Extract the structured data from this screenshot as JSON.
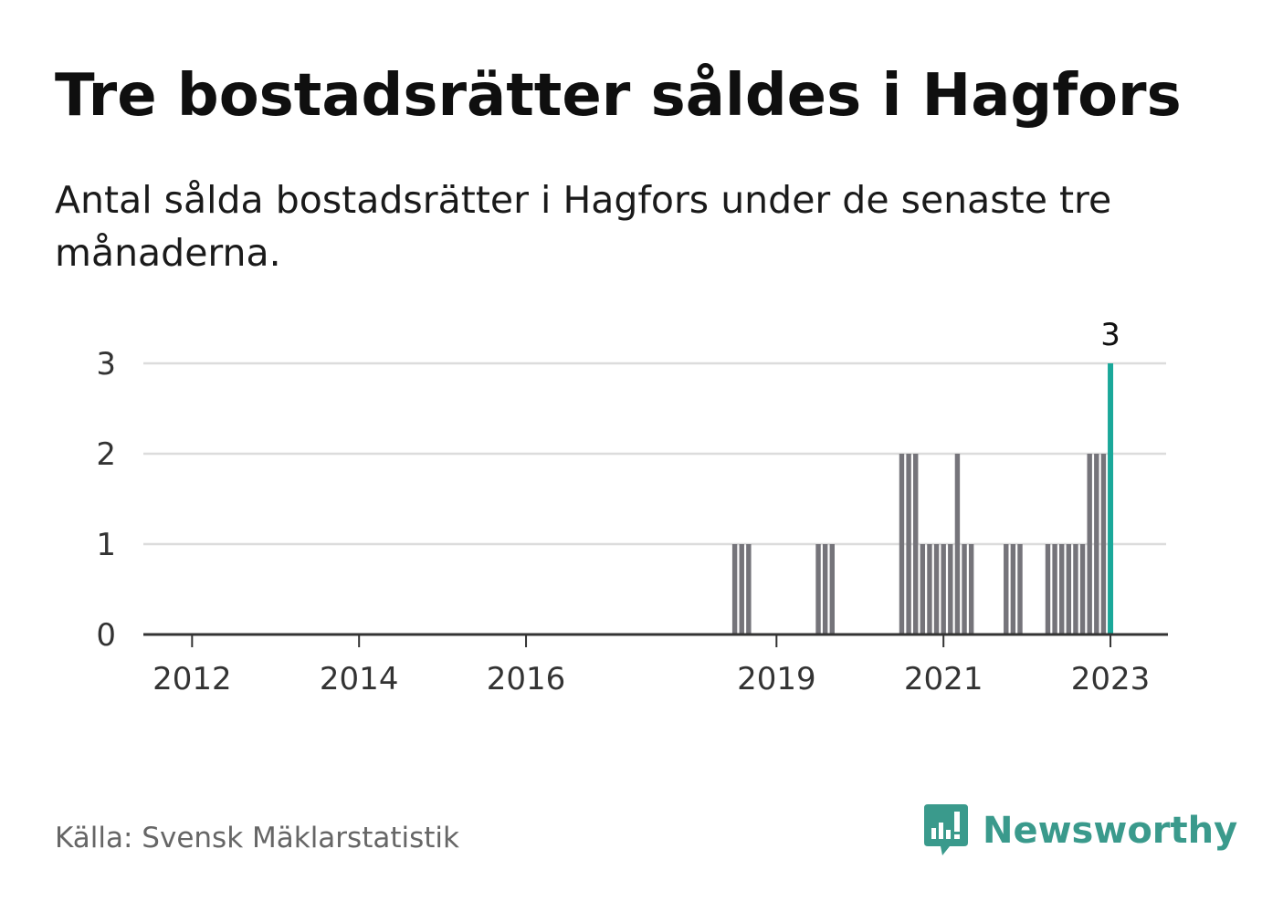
{
  "title": "Tre bostadsrätter såldes i Hagfors",
  "subtitle": "Antal sålda bostadsrätter i Hagfors under de senaste tre månaderna.",
  "source": "Källa: Svensk Mäklarstatistik",
  "brand": {
    "name": "Newsworthy",
    "icon": "newsworthy-logo-icon"
  },
  "colors": {
    "bar": "#75747a",
    "highlight": "#1aa89a",
    "grid": "#dcdcdc",
    "axis": "#333333",
    "brand": "#3a9a8c"
  },
  "chart_data": {
    "type": "bar",
    "title": "Tre bostadsrätter såldes i Hagfors",
    "subtitle": "Antal sålda bostadsrätter i Hagfors under de senaste tre månaderna.",
    "xlabel": "",
    "ylabel": "",
    "x_unit": "month",
    "ylim": [
      0,
      3
    ],
    "yticks": [
      0,
      1,
      2,
      3
    ],
    "xticks": [
      "2012",
      "2014",
      "2016",
      "2019",
      "2021",
      "2023"
    ],
    "xtick_positions": [
      "2012-01",
      "2014-01",
      "2016-01",
      "2019-01",
      "2021-01",
      "2023-01"
    ],
    "x_range": [
      "2011-06",
      "2023-09"
    ],
    "grid": true,
    "series": [
      {
        "values": [
          {
            "x": "2018-07",
            "y": 1
          },
          {
            "x": "2018-08",
            "y": 1
          },
          {
            "x": "2018-09",
            "y": 1
          },
          {
            "x": "2019-07",
            "y": 1
          },
          {
            "x": "2019-08",
            "y": 1
          },
          {
            "x": "2019-09",
            "y": 1
          },
          {
            "x": "2020-07",
            "y": 2
          },
          {
            "x": "2020-08",
            "y": 2
          },
          {
            "x": "2020-09",
            "y": 2
          },
          {
            "x": "2020-10",
            "y": 1
          },
          {
            "x": "2020-11",
            "y": 1
          },
          {
            "x": "2020-12",
            "y": 1
          },
          {
            "x": "2021-01",
            "y": 1
          },
          {
            "x": "2021-02",
            "y": 1
          },
          {
            "x": "2021-03",
            "y": 2
          },
          {
            "x": "2021-04",
            "y": 1
          },
          {
            "x": "2021-05",
            "y": 1
          },
          {
            "x": "2021-10",
            "y": 1
          },
          {
            "x": "2021-11",
            "y": 1
          },
          {
            "x": "2021-12",
            "y": 1
          },
          {
            "x": "2022-04",
            "y": 1
          },
          {
            "x": "2022-05",
            "y": 1
          },
          {
            "x": "2022-06",
            "y": 1
          },
          {
            "x": "2022-07",
            "y": 1
          },
          {
            "x": "2022-08",
            "y": 1
          },
          {
            "x": "2022-09",
            "y": 1
          },
          {
            "x": "2022-10",
            "y": 2
          },
          {
            "x": "2022-11",
            "y": 2
          },
          {
            "x": "2022-12",
            "y": 2
          },
          {
            "x": "2023-01",
            "y": 3
          }
        ]
      }
    ],
    "highlight": {
      "x": "2023-01",
      "y": 3,
      "label": "3"
    }
  }
}
